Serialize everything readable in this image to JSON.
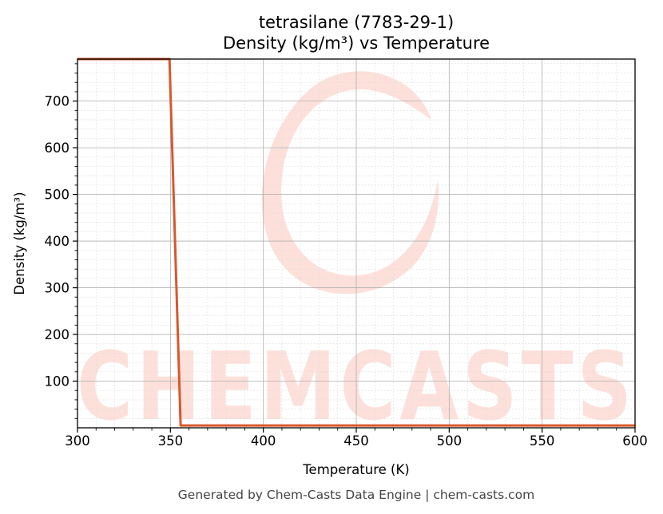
{
  "chart_data": {
    "type": "line",
    "title": "tetrasilane (7783-29-1)",
    "subtitle": "Density (kg/m³) vs Temperature",
    "xlabel": "Temperature (K)",
    "ylabel": "Density (kg/m³)",
    "xlim": [
      300,
      600
    ],
    "ylim": [
      0,
      790
    ],
    "xticks": [
      300,
      350,
      400,
      450,
      500,
      550,
      600
    ],
    "yticks": [
      100,
      200,
      300,
      400,
      500,
      600,
      700
    ],
    "grid": true,
    "series": [
      {
        "color": "#d9572b",
        "x": [
          300,
          349.5,
          355.5,
          600
        ],
        "y": [
          790,
          790,
          5,
          5
        ]
      }
    ]
  },
  "watermark": "CHEMCASTS",
  "footer": "Generated by Chem-Casts Data Engine | chem-casts.com"
}
